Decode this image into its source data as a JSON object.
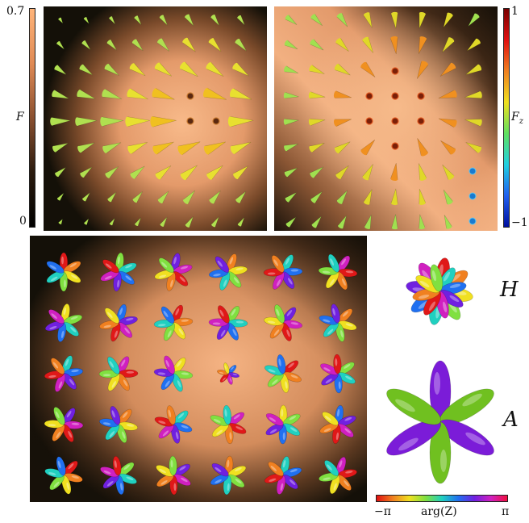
{
  "colorbar_F": {
    "symbol": "F",
    "max_label": "0.7",
    "min_label": "0"
  },
  "colorbar_Fz": {
    "symbol": "F",
    "subscript": "z",
    "max_label": "1",
    "min_label": "−1"
  },
  "labels": {
    "H": "H",
    "A": "A"
  },
  "phase_bar": {
    "left": "−π",
    "middle": "arg(Z)",
    "right": "π"
  },
  "colors": {
    "background_dark": "#1a1208",
    "background_light": "#f6b887",
    "f_bar_top": "#ffb47a",
    "f_bar_bottom": "#000000"
  }
}
